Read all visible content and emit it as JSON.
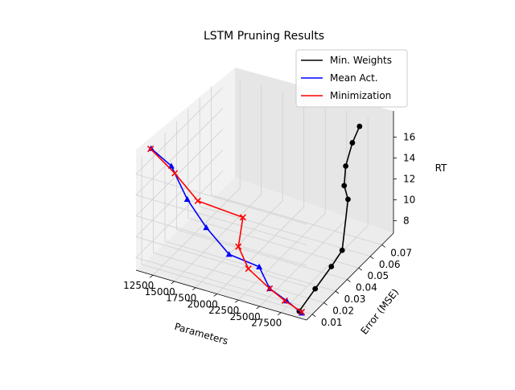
{
  "chart_data": {
    "type": "line3d",
    "title": "LSTM Pruning Results",
    "xlabel": "Parameters",
    "ylabel": "Error (MSE)",
    "zlabel": "RT",
    "xlim": [
      10500,
      30500
    ],
    "ylim": [
      0.005,
      0.08
    ],
    "zlim": [
      6.8,
      17.2
    ],
    "x_ticks": [
      "12500",
      "15000",
      "17500",
      "20000",
      "22500",
      "25000",
      "27500"
    ],
    "y_ticks": [
      "0.01",
      "0.02",
      "0.03",
      "0.04",
      "0.05",
      "0.06",
      "0.07"
    ],
    "z_ticks": [
      "8",
      "10",
      "12",
      "14",
      "16"
    ],
    "grid": true,
    "legend_position": "top-right",
    "series": [
      {
        "name": "Min. Weights",
        "color": "#000000",
        "marker": "circle",
        "points": [
          {
            "x": 29500,
            "y": 0.006,
            "z": 7.3
          },
          {
            "x": 29200,
            "y": 0.022,
            "z": 7.6
          },
          {
            "x": 29600,
            "y": 0.033,
            "z": 8.6
          },
          {
            "x": 29100,
            "y": 0.046,
            "z": 8.6
          },
          {
            "x": 28700,
            "y": 0.054,
            "z": 12.5
          },
          {
            "x": 27300,
            "y": 0.061,
            "z": 12.7
          },
          {
            "x": 26800,
            "y": 0.066,
            "z": 13.9
          },
          {
            "x": 26900,
            "y": 0.071,
            "z": 15.6
          },
          {
            "x": 27200,
            "y": 0.075,
            "z": 16.8
          }
        ]
      },
      {
        "name": "Mean Act.",
        "color": "#0000ff",
        "marker": "triangle",
        "points": [
          {
            "x": 29800,
            "y": 0.006,
            "z": 7.2
          },
          {
            "x": 27900,
            "y": 0.007,
            "z": 7.8
          },
          {
            "x": 25900,
            "y": 0.007,
            "z": 8.5
          },
          {
            "x": 24400,
            "y": 0.009,
            "z": 10.0
          },
          {
            "x": 21000,
            "y": 0.008,
            "z": 10.5
          },
          {
            "x": 18400,
            "y": 0.0075,
            "z": 12.5
          },
          {
            "x": 16100,
            "y": 0.008,
            "z": 14.6
          },
          {
            "x": 14100,
            "y": 0.009,
            "z": 17.2
          },
          {
            "x": 12000,
            "y": 0.007,
            "z": 18.6
          }
        ]
      },
      {
        "name": "Minimization",
        "color": "#ff0000",
        "marker": "x",
        "points": [
          {
            "x": 29800,
            "y": 0.006,
            "z": 7.3
          },
          {
            "x": 27800,
            "y": 0.006,
            "z": 7.9
          },
          {
            "x": 25900,
            "y": 0.007,
            "z": 8.5
          },
          {
            "x": 23400,
            "y": 0.007,
            "z": 9.8
          },
          {
            "x": 22100,
            "y": 0.008,
            "z": 11.5
          },
          {
            "x": 21000,
            "y": 0.02,
            "z": 12.7
          },
          {
            "x": 17200,
            "y": 0.009,
            "z": 14.6
          },
          {
            "x": 14500,
            "y": 0.009,
            "z": 16.6
          },
          {
            "x": 11800,
            "y": 0.008,
            "z": 18.4
          }
        ]
      }
    ]
  }
}
